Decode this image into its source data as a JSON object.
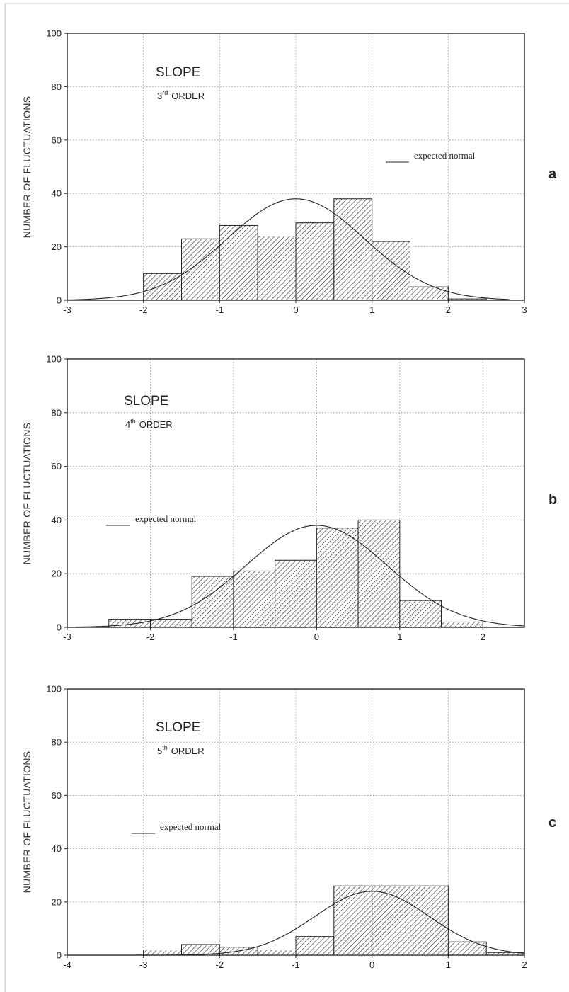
{
  "figure": {
    "legend_label": "expected normal"
  },
  "chart_data": [
    {
      "type": "bar",
      "panel_label": "a",
      "ylabel": "NUMBER OF FLUCTUATIONS",
      "title_line1": "SLOPE",
      "order_num": "3",
      "order_sup": "rd",
      "order_word": "ORDER",
      "legend_label": "expected normal",
      "xlim": [
        -3,
        3
      ],
      "ylim": [
        0,
        100
      ],
      "xticks": [
        "-3",
        "-2",
        "-1",
        "0",
        "1",
        "2",
        "3"
      ],
      "yticks": [
        "0",
        "20",
        "40",
        "60",
        "80",
        "100"
      ],
      "bin_width": 0.5,
      "bin_starts": [
        -2,
        -1.5,
        -1,
        -0.5,
        0,
        0.5,
        1,
        1.5,
        2
      ],
      "values": [
        10,
        23,
        28,
        24,
        29,
        38,
        22,
        5,
        0.5
      ],
      "normal_curve": {
        "peak": 38,
        "mean": 0,
        "sd": 0.9,
        "range": [
          -3,
          2.8
        ]
      },
      "grid": true
    },
    {
      "type": "bar",
      "panel_label": "b",
      "ylabel": "NUMBER OF FLUCTUATIONS",
      "title_line1": "SLOPE",
      "order_num": "4",
      "order_sup": "th",
      "order_word": "ORDER",
      "legend_label": "expected normal",
      "xlim": [
        -3,
        2.5
      ],
      "ylim": [
        0,
        100
      ],
      "xticks": [
        "-3",
        "-2",
        "-1",
        "0",
        "1",
        "2"
      ],
      "yticks": [
        "0",
        "20",
        "40",
        "60",
        "80",
        "100"
      ],
      "bin_width": 0.5,
      "bin_starts": [
        -2.5,
        -2,
        -1.5,
        -1,
        -0.5,
        0,
        0.5,
        1,
        1.5
      ],
      "values": [
        3,
        3,
        19,
        21,
        25,
        37,
        40,
        10,
        2
      ],
      "normal_curve": {
        "peak": 38,
        "mean": 0,
        "sd": 0.85,
        "range": [
          -2.9,
          2.5
        ]
      },
      "grid": true
    },
    {
      "type": "bar",
      "panel_label": "c",
      "ylabel": "NUMBER OF FLUCTUATIONS",
      "title_line1": "SLOPE",
      "order_num": "5",
      "order_sup": "th",
      "order_word": "ORDER",
      "legend_label": "expected normal",
      "xlim": [
        -4,
        2
      ],
      "ylim": [
        0,
        100
      ],
      "xticks": [
        "-4",
        "-3",
        "-2",
        "-1",
        "0",
        "1",
        "2"
      ],
      "yticks": [
        "0",
        "20",
        "40",
        "60",
        "80",
        "100"
      ],
      "bin_width": 0.5,
      "bin_starts": [
        -3,
        -2.5,
        -2,
        -1.5,
        -1,
        -0.5,
        0,
        0.5,
        1,
        1.5
      ],
      "values": [
        2,
        4,
        3,
        2,
        7,
        26,
        26,
        26,
        5,
        1
      ],
      "normal_curve": {
        "peak": 24,
        "mean": 0,
        "sd": 0.75,
        "range": [
          -3.1,
          2
        ]
      },
      "grid": true
    }
  ]
}
